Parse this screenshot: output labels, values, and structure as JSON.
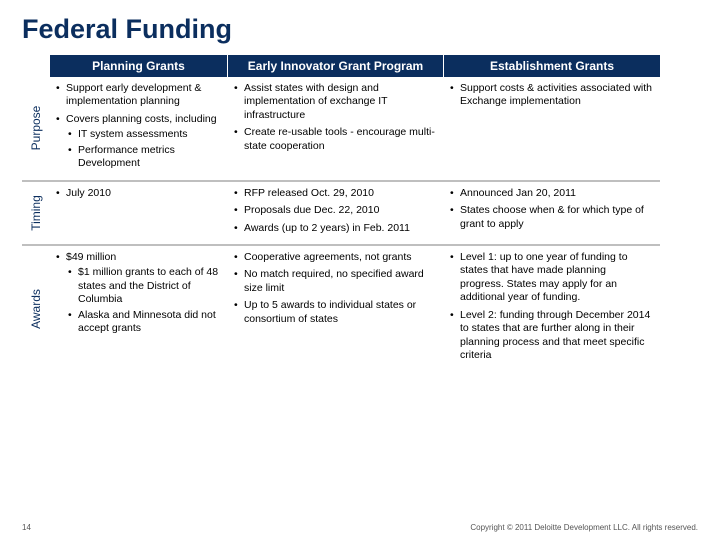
{
  "colors": {
    "brand": "#0b2e5e",
    "divider": "#bfbfbf",
    "background": "#ffffff"
  },
  "title": "Federal Funding",
  "headers": {
    "c1": "Planning Grants",
    "c2": "Early Innovator Grant Program",
    "c3": "Establishment Grants"
  },
  "rows": {
    "purpose": {
      "label": "Purpose",
      "c1": [
        "Support early development & implementation planning",
        {
          "text": "Covers planning costs, including",
          "sub": [
            "IT system assessments",
            "Performance metrics Development"
          ]
        }
      ],
      "c2": [
        "Assist states with design and implementation of exchange IT infrastructure",
        "Create re-usable tools - encourage multi-state cooperation"
      ],
      "c3": [
        "Support costs & activities associated with Exchange implementation"
      ]
    },
    "timing": {
      "label": "Timing",
      "c1": [
        "July 2010"
      ],
      "c2": [
        "RFP released Oct. 29, 2010",
        "Proposals due Dec. 22, 2010",
        "Awards (up to 2 years)  in Feb. 2011"
      ],
      "c3": [
        "Announced Jan 20, 2011",
        "States choose when & for which type of grant to apply"
      ]
    },
    "awards": {
      "label": "Awards",
      "c1": [
        {
          "text": "$49 million",
          "sub": [
            "$1 million grants to each of 48 states and the District of Columbia",
            "Alaska and Minnesota did not accept grants"
          ]
        }
      ],
      "c2": [
        "Cooperative agreements, not grants",
        "No match required, no specified award size limit",
        "Up to 5 awards to individual states or consortium of states"
      ],
      "c3": [
        "Level 1: up to one year of funding to states that have made planning progress. States may apply for an additional year of funding.",
        "Level 2: funding through December 2014 to states that are further along in their planning process and that meet specific criteria"
      ]
    }
  },
  "footer": {
    "page": "14",
    "copyright": "Copyright © 2011 Deloitte Development LLC. All rights reserved."
  }
}
